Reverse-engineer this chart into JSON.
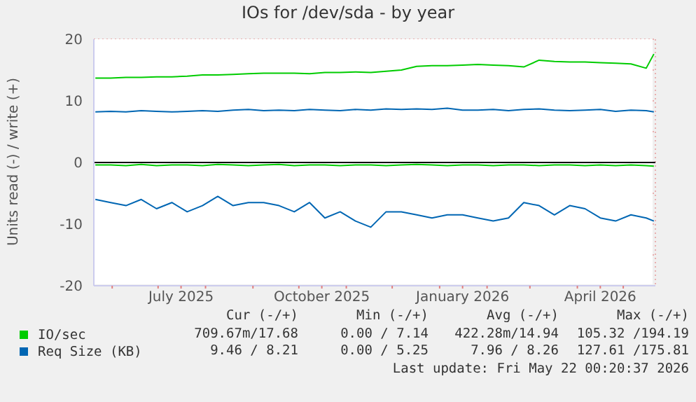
{
  "chart_data": {
    "type": "line",
    "title": "IOs for /dev/sda - by year",
    "ylabel": "Units read (-) / write (+)",
    "x": [
      "2025-05-21",
      "2025-05-31",
      "2025-06-10",
      "2025-06-20",
      "2025-06-30",
      "2025-07-10",
      "2025-07-20",
      "2025-07-30",
      "2025-08-09",
      "2025-08-19",
      "2025-08-29",
      "2025-09-08",
      "2025-09-18",
      "2025-09-28",
      "2025-10-08",
      "2025-10-18",
      "2025-10-28",
      "2025-11-07",
      "2025-11-17",
      "2025-11-27",
      "2025-12-07",
      "2025-12-17",
      "2025-12-27",
      "2026-01-06",
      "2026-01-16",
      "2026-01-26",
      "2026-02-05",
      "2026-02-15",
      "2026-02-25",
      "2026-03-07",
      "2026-03-17",
      "2026-03-27",
      "2026-04-06",
      "2026-04-16",
      "2026-04-26",
      "2026-05-06",
      "2026-05-16",
      "2026-05-21"
    ],
    "series": [
      {
        "name": "IO/sec",
        "color": "#00cc00",
        "values": [
          13.7,
          13.7,
          13.8,
          13.8,
          13.9,
          13.9,
          14.0,
          14.2,
          14.2,
          14.3,
          14.4,
          14.5,
          14.5,
          14.5,
          14.4,
          14.6,
          14.6,
          14.7,
          14.6,
          14.8,
          15.0,
          15.6,
          15.7,
          15.7,
          15.8,
          15.9,
          15.8,
          15.7,
          15.5,
          16.6,
          16.4,
          16.3,
          16.3,
          16.2,
          16.1,
          16.0,
          15.3,
          17.6
        ]
      },
      {
        "color": "#00cc00",
        "values": [
          -0.4,
          -0.4,
          -0.5,
          -0.3,
          -0.5,
          -0.4,
          -0.4,
          -0.5,
          -0.3,
          -0.4,
          -0.5,
          -0.4,
          -0.3,
          -0.5,
          -0.4,
          -0.4,
          -0.5,
          -0.4,
          -0.4,
          -0.5,
          -0.4,
          -0.3,
          -0.4,
          -0.5,
          -0.4,
          -0.4,
          -0.5,
          -0.4,
          -0.4,
          -0.5,
          -0.4,
          -0.4,
          -0.5,
          -0.4,
          -0.5,
          -0.4,
          -0.5,
          -0.6
        ]
      },
      {
        "name": "Req Size (KB)",
        "color": "#0066b3",
        "values": [
          8.2,
          8.3,
          8.2,
          8.4,
          8.3,
          8.2,
          8.3,
          8.4,
          8.3,
          8.5,
          8.6,
          8.4,
          8.5,
          8.4,
          8.6,
          8.5,
          8.4,
          8.6,
          8.5,
          8.7,
          8.6,
          8.7,
          8.6,
          8.8,
          8.5,
          8.5,
          8.6,
          8.4,
          8.6,
          8.7,
          8.5,
          8.4,
          8.5,
          8.6,
          8.3,
          8.5,
          8.4,
          8.2
        ]
      },
      {
        "color": "#0066b3",
        "values": [
          -6,
          -6.5,
          -7,
          -6,
          -7.5,
          -6.5,
          -8,
          -7,
          -5.5,
          -7,
          -6.5,
          -6.5,
          -7,
          -8,
          -6.5,
          -9,
          -8,
          -9.5,
          -10.5,
          -8,
          -8,
          -8.5,
          -9,
          -8.5,
          -8.5,
          -9,
          -9.5,
          -9,
          -6.5,
          -7,
          -8.5,
          -7,
          -7.5,
          -9,
          -9.5,
          -8.5,
          -9,
          -9.5
        ]
      }
    ],
    "xlim": [
      "2025-05-20",
      "2026-05-22"
    ],
    "xticks": [
      {
        "value": "2025-06-01",
        "label": null
      },
      {
        "value": "2025-07-01",
        "label": null
      },
      {
        "value": "2025-07-16",
        "label": "July 2025"
      },
      {
        "value": "2025-08-01",
        "label": null
      },
      {
        "value": "2025-09-01",
        "label": null
      },
      {
        "value": "2025-10-01",
        "label": null
      },
      {
        "value": "2025-10-16",
        "label": "October 2025"
      },
      {
        "value": "2025-11-01",
        "label": null
      },
      {
        "value": "2025-12-01",
        "label": null
      },
      {
        "value": "2026-01-01",
        "label": null
      },
      {
        "value": "2026-01-16",
        "label": "January 2026"
      },
      {
        "value": "2026-02-01",
        "label": null
      },
      {
        "value": "2026-03-01",
        "label": null
      },
      {
        "value": "2026-04-01",
        "label": null
      },
      {
        "value": "2026-04-16",
        "label": "April 2026"
      },
      {
        "value": "2026-05-01",
        "label": null
      }
    ],
    "ylim": [
      -20,
      20
    ],
    "yticks": [
      -20,
      {
        "value": -15,
        "label": null
      },
      -10,
      {
        "value": -5,
        "label": null
      },
      0,
      {
        "value": 5,
        "label": null
      },
      10,
      {
        "value": 15,
        "label": null
      },
      20
    ],
    "grid": true,
    "legend": "bottom",
    "marker": "none",
    "line_style": "solid",
    "ref_lines": [
      {
        "axis": "y",
        "value": 0,
        "color": "#000000"
      }
    ],
    "annotations": [
      "Cur (-/+)",
      "Min (-/+)",
      "Avg (-/+)",
      "Max (-/+)",
      "709.67m/17.68",
      "0.00 / 7.14",
      "422.28m/14.94",
      "105.32 /194.19",
      "9.46 / 8.21",
      "0.00 / 5.25",
      "7.96 / 8.26",
      "127.61 /175.81",
      "Last update: Fri May 22 00:20:37 2026"
    ]
  }
}
